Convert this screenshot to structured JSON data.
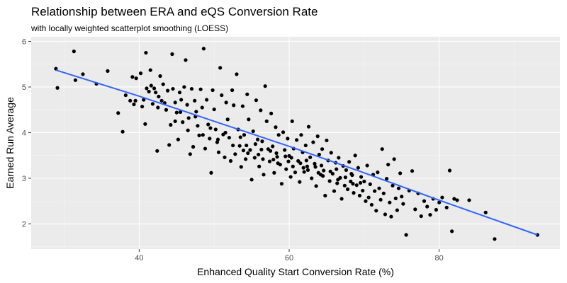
{
  "chart_data": {
    "type": "scatter",
    "title": "Relationship between ERA and eQS Conversion Rate",
    "subtitle": "with locally weighted scatterplot smoothing (LOESS)",
    "xlabel": "Enhanced Quality Start Conversion Rate (%)",
    "ylabel": "Earned Run Average",
    "xlim": [
      25.6,
      96.1
    ],
    "ylim": [
      1.45,
      6.1
    ],
    "x_ticks": [
      40,
      60,
      80
    ],
    "y_ticks": [
      2,
      3,
      4,
      5,
      6
    ],
    "x_tick_labels": [
      "40",
      "60",
      "80"
    ],
    "y_tick_labels": [
      "2",
      "3",
      "4",
      "5",
      "6"
    ],
    "grid": true,
    "background": "#ebebeb",
    "grid_color": "#ffffff",
    "point_color": "#000000",
    "smooth_line_color": "#3366ff",
    "smooth_line": [
      [
        28.9,
        5.37
      ],
      [
        40,
        4.8
      ],
      [
        50,
        4.25
      ],
      [
        60,
        3.7
      ],
      [
        70,
        3.12
      ],
      [
        80,
        2.52
      ],
      [
        93.1,
        1.76
      ]
    ],
    "points": [
      [
        28.9,
        5.4
      ],
      [
        29.1,
        4.98
      ],
      [
        31.3,
        5.78
      ],
      [
        31.5,
        5.15
      ],
      [
        32.5,
        5.28
      ],
      [
        34.3,
        5.07
      ],
      [
        35.8,
        5.35
      ],
      [
        37.2,
        4.43
      ],
      [
        37.8,
        4.02
      ],
      [
        38.2,
        4.82
      ],
      [
        38.8,
        4.7
      ],
      [
        39.1,
        5.22
      ],
      [
        39.3,
        4.62
      ],
      [
        39.5,
        4.7
      ],
      [
        39.6,
        5.19
      ],
      [
        40.2,
        5.3
      ],
      [
        40.4,
        4.57
      ],
      [
        40.6,
        4.72
      ],
      [
        40.8,
        4.19
      ],
      [
        40.9,
        5.75
      ],
      [
        41.0,
        4.97
      ],
      [
        41.3,
        4.9
      ],
      [
        41.5,
        5.37
      ],
      [
        41.6,
        5.03
      ],
      [
        41.8,
        4.63
      ],
      [
        42.0,
        4.97
      ],
      [
        42.2,
        4.88
      ],
      [
        42.4,
        3.6
      ],
      [
        42.6,
        4.79
      ],
      [
        42.8,
        5.24
      ],
      [
        43.0,
        4.7
      ],
      [
        43.2,
        5.06
      ],
      [
        43.4,
        4.65
      ],
      [
        43.6,
        4.5
      ],
      [
        43.8,
        4.92
      ],
      [
        44.0,
        3.73
      ],
      [
        44.2,
        4.17
      ],
      [
        44.4,
        5.72
      ],
      [
        44.5,
        4.96
      ],
      [
        44.8,
        4.66
      ],
      [
        45.0,
        4.44
      ],
      [
        45.2,
        3.85
      ],
      [
        45.4,
        4.88
      ],
      [
        45.6,
        4.72
      ],
      [
        45.8,
        4.23
      ],
      [
        46.0,
        5.0
      ],
      [
        46.2,
        5.59
      ],
      [
        46.4,
        4.61
      ],
      [
        46.6,
        4.32
      ],
      [
        46.8,
        3.53
      ],
      [
        47.0,
        4.96
      ],
      [
        47.2,
        3.69
      ],
      [
        47.4,
        4.7
      ],
      [
        47.6,
        4.46
      ],
      [
        47.8,
        4.15
      ],
      [
        48.0,
        3.94
      ],
      [
        48.2,
        4.95
      ],
      [
        48.4,
        4.55
      ],
      [
        48.6,
        5.84
      ],
      [
        48.8,
        3.65
      ],
      [
        49.0,
        4.72
      ],
      [
        49.2,
        4.18
      ],
      [
        49.4,
        3.87
      ],
      [
        49.6,
        3.12
      ],
      [
        49.8,
        4.93
      ],
      [
        50.0,
        4.51
      ],
      [
        50.2,
        4.07
      ],
      [
        50.4,
        3.79
      ],
      [
        50.6,
        3.57
      ],
      [
        50.8,
        5.42
      ],
      [
        51.0,
        4.82
      ],
      [
        51.2,
        3.96
      ],
      [
        51.4,
        3.46
      ],
      [
        51.6,
        4.66
      ],
      [
        51.8,
        4.29
      ],
      [
        52.0,
        3.89
      ],
      [
        52.2,
        3.38
      ],
      [
        52.4,
        4.93
      ],
      [
        52.6,
        4.6
      ],
      [
        52.8,
        3.53
      ],
      [
        53.0,
        5.28
      ],
      [
        53.2,
        4.07
      ],
      [
        53.4,
        3.71
      ],
      [
        53.6,
        3.25
      ],
      [
        53.8,
        4.58
      ],
      [
        54.0,
        3.95
      ],
      [
        54.2,
        3.42
      ],
      [
        54.4,
        4.84
      ],
      [
        54.6,
        4.29
      ],
      [
        54.8,
        3.62
      ],
      [
        55.0,
        2.97
      ],
      [
        55.2,
        4.03
      ],
      [
        55.4,
        3.45
      ],
      [
        55.6,
        4.71
      ],
      [
        55.8,
        3.85
      ],
      [
        56.0,
        3.26
      ],
      [
        56.2,
        4.49
      ],
      [
        56.4,
        3.81
      ],
      [
        56.6,
        3.08
      ],
      [
        56.8,
        5.02
      ],
      [
        57.0,
        4.25
      ],
      [
        57.2,
        3.64
      ],
      [
        57.4,
        3.37
      ],
      [
        57.6,
        4.42
      ],
      [
        57.8,
        3.7
      ],
      [
        58.0,
        3.12
      ],
      [
        58.2,
        4.12
      ],
      [
        58.4,
        3.47
      ],
      [
        58.6,
        3.95
      ],
      [
        58.8,
        3.3
      ],
      [
        59.0,
        2.88
      ],
      [
        59.2,
        4.01
      ],
      [
        59.4,
        3.62
      ],
      [
        59.6,
        3.2
      ],
      [
        59.8,
        3.87
      ],
      [
        60.0,
        3.49
      ],
      [
        60.2,
        3.03
      ],
      [
        60.4,
        4.25
      ],
      [
        60.6,
        3.65
      ],
      [
        60.8,
        3.13
      ],
      [
        61.0,
        3.84
      ],
      [
        61.2,
        3.38
      ],
      [
        61.4,
        2.92
      ],
      [
        61.6,
        3.95
      ],
      [
        61.8,
        3.57
      ],
      [
        62.0,
        3.14
      ],
      [
        62.2,
        3.72
      ],
      [
        62.4,
        3.26
      ],
      [
        62.6,
        4.13
      ],
      [
        62.8,
        3.46
      ],
      [
        63.0,
        3.0
      ],
      [
        63.2,
        3.79
      ],
      [
        63.4,
        3.32
      ],
      [
        63.6,
        2.83
      ],
      [
        63.8,
        3.92
      ],
      [
        64.0,
        3.52
      ],
      [
        64.2,
        3.08
      ],
      [
        64.4,
        3.64
      ],
      [
        64.6,
        3.17
      ],
      [
        64.8,
        2.62
      ],
      [
        65.0,
        3.83
      ],
      [
        65.2,
        3.39
      ],
      [
        65.4,
        2.94
      ],
      [
        65.6,
        3.56
      ],
      [
        65.8,
        3.1
      ],
      [
        66.0,
        2.72
      ],
      [
        66.2,
        3.34
      ],
      [
        66.4,
        2.89
      ],
      [
        66.6,
        3.45
      ],
      [
        66.8,
        3.01
      ],
      [
        67.0,
        2.55
      ],
      [
        67.2,
        3.27
      ],
      [
        67.4,
        2.84
      ],
      [
        67.6,
        3.18
      ],
      [
        67.8,
        2.76
      ],
      [
        68.0,
        3.36
      ],
      [
        68.2,
        2.93
      ],
      [
        68.4,
        3.07
      ],
      [
        68.6,
        2.68
      ],
      [
        68.8,
        3.5
      ],
      [
        69.0,
        2.85
      ],
      [
        69.2,
        3.23
      ],
      [
        69.4,
        2.62
      ],
      [
        69.6,
        3.03
      ],
      [
        69.8,
        2.73
      ],
      [
        70.0,
        2.93
      ],
      [
        70.2,
        2.5
      ],
      [
        70.4,
        3.28
      ],
      [
        70.6,
        2.58
      ],
      [
        70.8,
        2.87
      ],
      [
        71.0,
        2.42
      ],
      [
        71.2,
        3.08
      ],
      [
        71.4,
        2.72
      ],
      [
        71.6,
        2.29
      ],
      [
        71.8,
        3.13
      ],
      [
        72.0,
        2.78
      ],
      [
        72.2,
        2.53
      ],
      [
        72.4,
        3.64
      ],
      [
        72.6,
        2.67
      ],
      [
        72.8,
        2.21
      ],
      [
        73.0,
        2.99
      ],
      [
        73.2,
        3.3
      ],
      [
        73.4,
        2.47
      ],
      [
        73.6,
        2.16
      ],
      [
        73.8,
        2.84
      ],
      [
        74.0,
        3.42
      ],
      [
        74.2,
        2.56
      ],
      [
        74.4,
        2.3
      ],
      [
        74.6,
        2.78
      ],
      [
        74.8,
        3.11
      ],
      [
        75.0,
        2.6
      ],
      [
        75.2,
        2.44
      ],
      [
        75.6,
        1.76
      ],
      [
        76.0,
        2.73
      ],
      [
        76.4,
        3.16
      ],
      [
        76.8,
        2.32
      ],
      [
        77.2,
        2.67
      ],
      [
        77.6,
        2.17
      ],
      [
        78.0,
        2.5
      ],
      [
        78.4,
        2.38
      ],
      [
        78.8,
        2.2
      ],
      [
        79.2,
        2.55
      ],
      [
        79.6,
        2.31
      ],
      [
        80.0,
        2.47
      ],
      [
        80.4,
        2.58
      ],
      [
        81.0,
        2.36
      ],
      [
        81.4,
        3.17
      ],
      [
        81.7,
        1.84
      ],
      [
        82.0,
        2.55
      ],
      [
        82.4,
        2.52
      ],
      [
        84.0,
        2.52
      ],
      [
        86.2,
        2.25
      ],
      [
        87.4,
        1.67
      ],
      [
        93.1,
        1.76
      ],
      [
        42.5,
        4.55
      ],
      [
        44.8,
        4.25
      ],
      [
        46.5,
        4.05
      ],
      [
        48.5,
        3.95
      ],
      [
        50.5,
        3.85
      ],
      [
        52.5,
        3.72
      ],
      [
        54.5,
        3.55
      ],
      [
        56.5,
        3.42
      ],
      [
        58.5,
        3.33
      ],
      [
        60.5,
        3.26
      ],
      [
        62.5,
        3.18
      ],
      [
        64.5,
        3.05
      ],
      [
        66.5,
        2.97
      ],
      [
        68.5,
        2.88
      ],
      [
        45.5,
        4.45
      ],
      [
        47.5,
        4.35
      ],
      [
        49.5,
        4.1
      ],
      [
        51.5,
        4.0
      ],
      [
        53.5,
        3.9
      ],
      [
        55.5,
        3.75
      ],
      [
        57.5,
        3.6
      ],
      [
        59.5,
        3.48
      ],
      [
        61.5,
        3.33
      ],
      [
        63.5,
        3.25
      ],
      [
        65.5,
        3.15
      ],
      [
        67.5,
        3.02
      ],
      [
        69.5,
        2.9
      ],
      [
        53.9,
        3.61
      ],
      [
        55.9,
        3.52
      ],
      [
        57.9,
        3.41
      ],
      [
        59.9,
        3.37
      ],
      [
        61.9,
        3.23
      ],
      [
        63.9,
        3.12
      ],
      [
        54.3,
        3.72
      ],
      [
        56.3,
        3.63
      ],
      [
        58.3,
        3.55
      ],
      [
        60.3,
        3.45
      ],
      [
        62.3,
        3.39
      ],
      [
        64.3,
        3.28
      ],
      [
        66.3,
        3.2
      ],
      [
        68.3,
        3.1
      ]
    ]
  }
}
